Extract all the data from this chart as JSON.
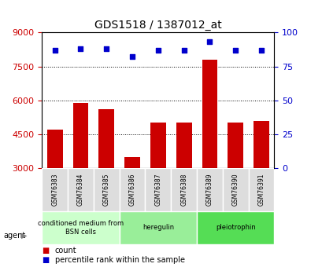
{
  "title": "GDS1518 / 1387012_at",
  "samples": [
    "GSM76383",
    "GSM76384",
    "GSM76385",
    "GSM76386",
    "GSM76387",
    "GSM76388",
    "GSM76389",
    "GSM76390",
    "GSM76391"
  ],
  "counts": [
    4700,
    5900,
    5600,
    3500,
    5000,
    5000,
    7800,
    5000,
    5100
  ],
  "percentiles": [
    87,
    88,
    88,
    82,
    87,
    87,
    93,
    87,
    87
  ],
  "groups": [
    {
      "label": "conditioned medium from\nBSN cells",
      "start": 0,
      "end": 3,
      "color": "#ccffcc"
    },
    {
      "label": "heregulin",
      "start": 3,
      "end": 6,
      "color": "#99ee99"
    },
    {
      "label": "pleiotrophin",
      "start": 6,
      "end": 9,
      "color": "#55dd55"
    }
  ],
  "bar_color": "#cc0000",
  "dot_color": "#0000cc",
  "ylim_left": [
    3000,
    9000
  ],
  "ylim_right": [
    0,
    100
  ],
  "yticks_left": [
    3000,
    4500,
    6000,
    7500,
    9000
  ],
  "yticks_right": [
    0,
    25,
    50,
    75,
    100
  ],
  "ylabel_left_color": "#cc0000",
  "ylabel_right_color": "#0000cc",
  "legend_count_color": "#cc0000",
  "legend_pct_color": "#0000cc",
  "background_color": "#ffffff",
  "plot_bg_color": "#ffffff",
  "grid_color": "#000000"
}
